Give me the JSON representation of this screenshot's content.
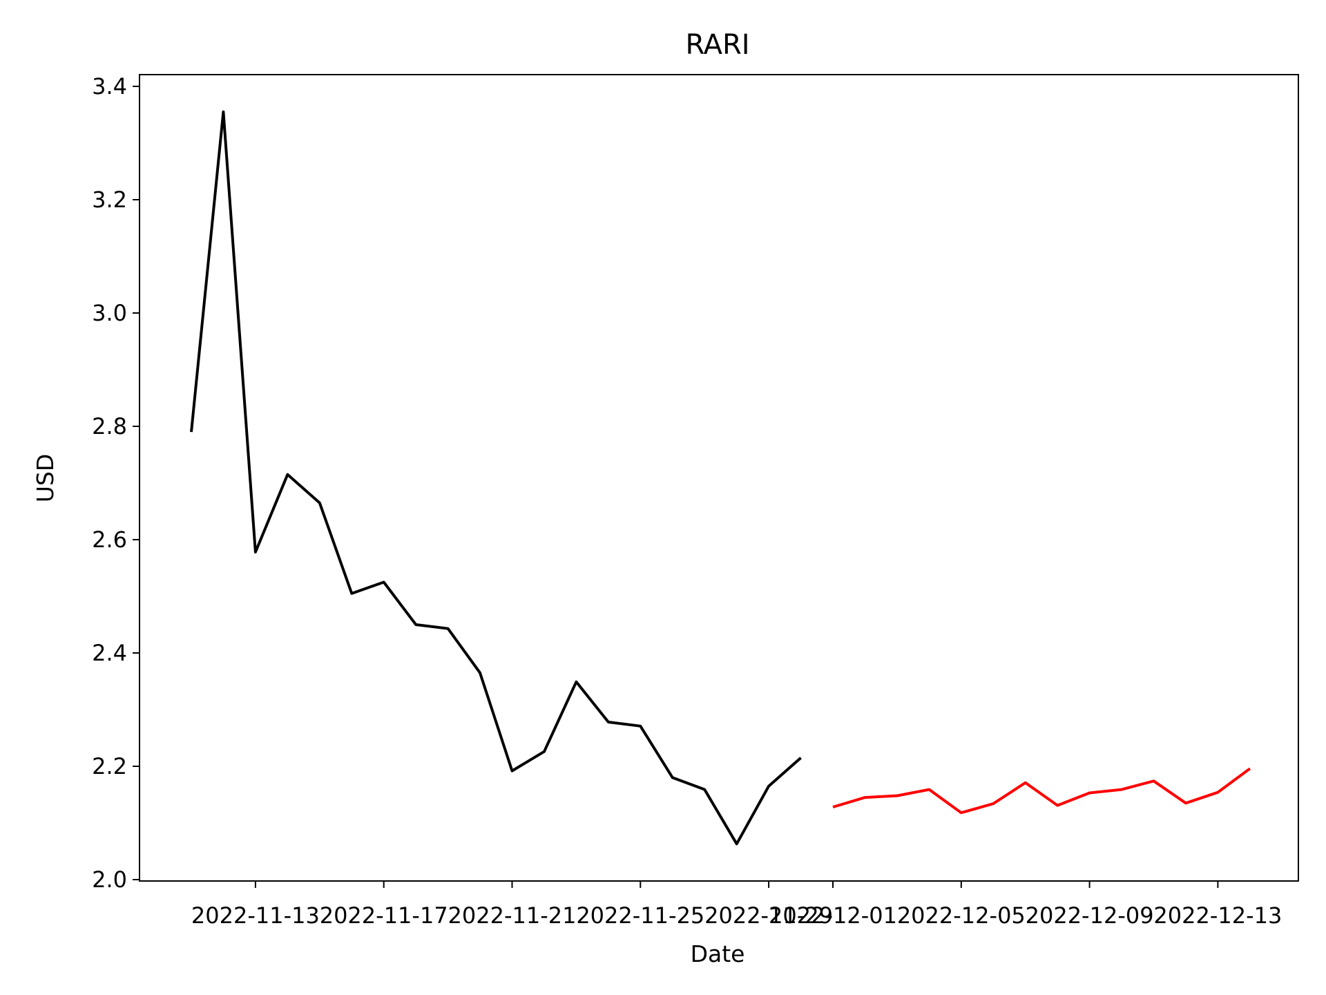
{
  "chart_data": {
    "type": "line",
    "title": "RARI",
    "xlabel": "Date",
    "ylabel": "USD",
    "ylim": [
      2.0,
      3.4
    ],
    "y_ticks": [
      "2.0",
      "2.2",
      "2.4",
      "2.6",
      "2.8",
      "3.0",
      "3.2",
      "3.4"
    ],
    "x_ticks": [
      "2022-11-13",
      "2022-11-17",
      "2022-11-21",
      "2022-11-25",
      "2022-11-29",
      "2022-12-01",
      "2022-12-05",
      "2022-12-09",
      "2022-12-13"
    ],
    "grid": false,
    "legend": null,
    "series": [
      {
        "color": "#000000",
        "x": [
          "2022-11-11",
          "2022-11-12",
          "2022-11-13",
          "2022-11-14",
          "2022-11-15",
          "2022-11-16",
          "2022-11-17",
          "2022-11-18",
          "2022-11-19",
          "2022-11-20",
          "2022-11-21",
          "2022-11-22",
          "2022-11-23",
          "2022-11-24",
          "2022-11-25",
          "2022-11-26",
          "2022-11-27",
          "2022-11-28",
          "2022-11-29",
          "2022-11-30"
        ],
        "values": [
          2.79,
          3.355,
          2.578,
          2.715,
          2.665,
          2.505,
          2.525,
          2.45,
          2.443,
          2.365,
          2.192,
          2.226,
          2.349,
          2.278,
          2.271,
          2.18,
          2.159,
          2.063,
          2.165,
          2.215
        ]
      },
      {
        "color": "#ff0000",
        "x": [
          "2022-12-01",
          "2022-12-02",
          "2022-12-03",
          "2022-12-04",
          "2022-12-05",
          "2022-12-06",
          "2022-12-07",
          "2022-12-08",
          "2022-12-09",
          "2022-12-10",
          "2022-12-11",
          "2022-12-12",
          "2022-12-13",
          "2022-12-14"
        ],
        "values": [
          2.128,
          2.145,
          2.148,
          2.159,
          2.118,
          2.134,
          2.171,
          2.131,
          2.153,
          2.159,
          2.174,
          2.135,
          2.154,
          2.196
        ]
      }
    ]
  }
}
